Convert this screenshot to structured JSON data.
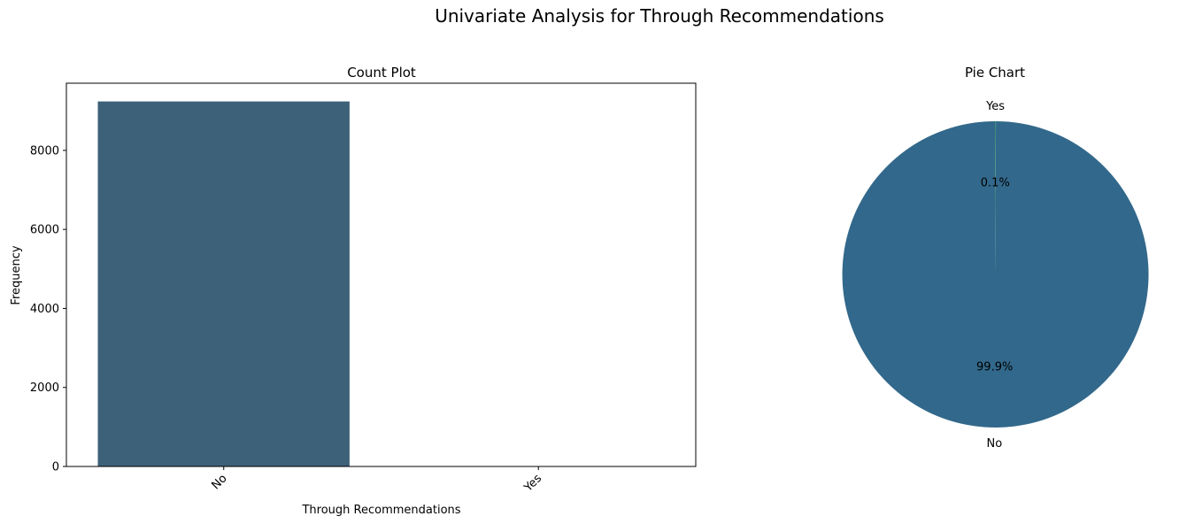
{
  "figure": {
    "title": "Univariate Analysis for Through Recommendations"
  },
  "chart_data": [
    {
      "type": "bar",
      "title": "Count Plot",
      "xlabel": "Through Recommendations",
      "ylabel": "Frequency",
      "categories": [
        "No",
        "Yes"
      ],
      "values": [
        9238,
        11
      ],
      "ylim": [
        0,
        9700
      ],
      "yticks": [
        0,
        2000,
        4000,
        6000,
        8000
      ],
      "ytick_labels": [
        "0",
        "2000",
        "4000",
        "6000",
        "8000"
      ],
      "xtick_rotation": 45,
      "bar_color": "#3d6179",
      "grid": false,
      "legend": "none"
    },
    {
      "type": "pie",
      "title": "Pie Chart",
      "labels": [
        "No",
        "Yes"
      ],
      "values": [
        99.9,
        0.1
      ],
      "pct_labels": [
        "99.9%",
        "0.1%"
      ],
      "colors": [
        "#32688b",
        "#3e8a7c"
      ],
      "start_angle": 90,
      "direction": "counterclockwise",
      "legend": "none"
    }
  ]
}
